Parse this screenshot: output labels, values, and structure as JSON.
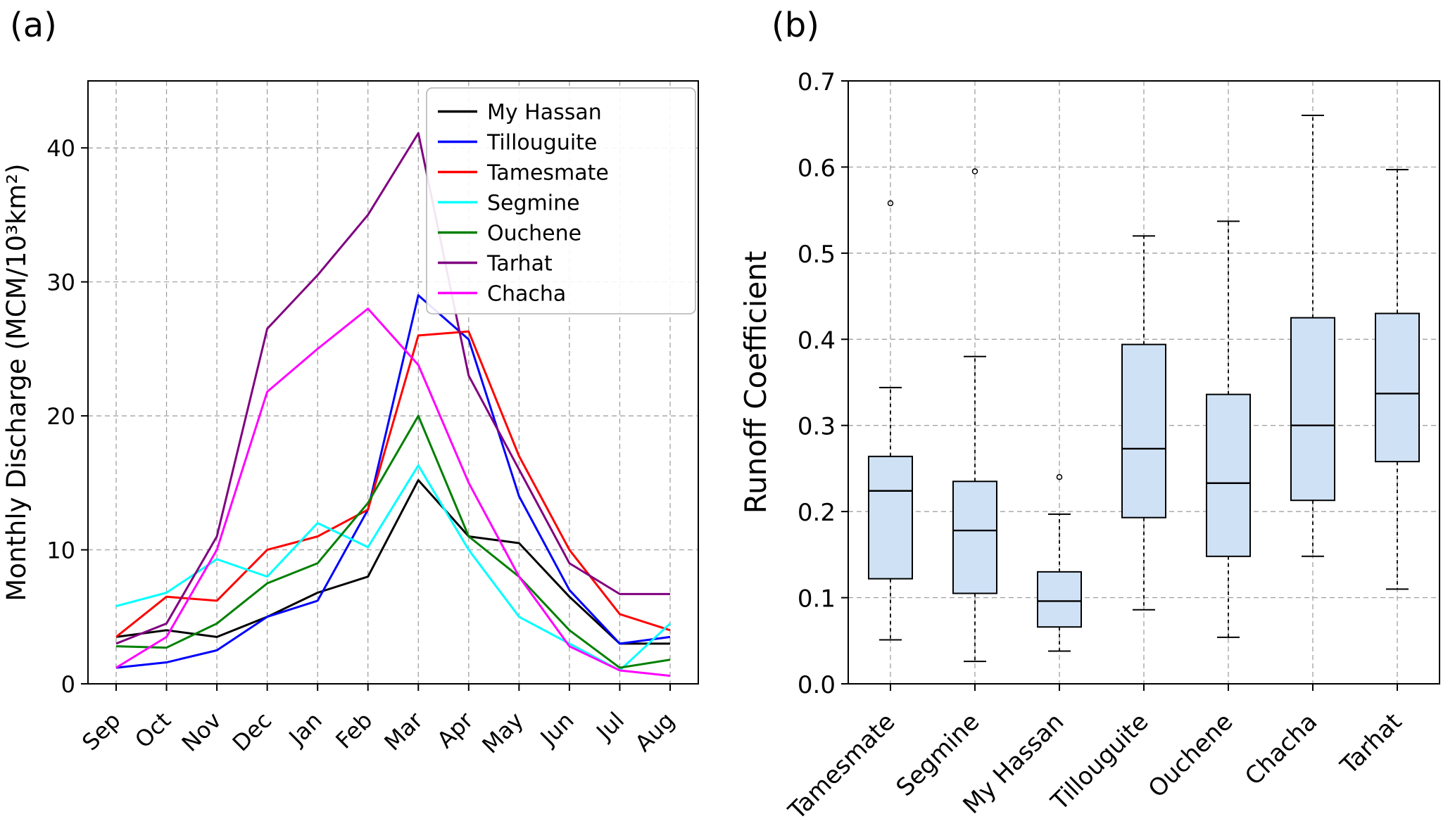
{
  "figure": {
    "panel_a_label": "(a)",
    "panel_b_label": "(b)",
    "background": "#ffffff",
    "grid_color": "#999999",
    "axis_color": "#000000"
  },
  "chart_data": [
    {
      "id": "monthly-discharge",
      "type": "line",
      "panel": "(a)",
      "title": "",
      "xlabel": "",
      "ylabel": "Monthly Discharge (MCM/10³km²)",
      "categories": [
        "Sep",
        "Oct",
        "Nov",
        "Dec",
        "Jan",
        "Feb",
        "Mar",
        "Apr",
        "May",
        "Jun",
        "Jul",
        "Aug"
      ],
      "ylim": [
        0,
        45
      ],
      "yticks": [
        0,
        10,
        20,
        30,
        40
      ],
      "ytick_labels": [
        "0",
        "10",
        "20",
        "30",
        "40"
      ],
      "grid": true,
      "legend_position": "upper right",
      "series": [
        {
          "name": "My Hassan",
          "color": "#000000",
          "values": [
            3.5,
            4.0,
            3.5,
            5.0,
            6.8,
            8.0,
            15.2,
            11.0,
            10.5,
            6.5,
            3.0,
            3.0
          ]
        },
        {
          "name": "Tillouguite",
          "color": "#0000ff",
          "values": [
            1.2,
            1.6,
            2.5,
            5.0,
            6.2,
            13.0,
            29.0,
            25.7,
            14.0,
            7.0,
            3.0,
            3.5
          ]
        },
        {
          "name": "Tamesmate",
          "color": "#ff0000",
          "values": [
            3.5,
            6.5,
            6.2,
            10.0,
            11.0,
            13.0,
            26.0,
            26.3,
            17.0,
            10.0,
            5.2,
            4.0
          ]
        },
        {
          "name": "Segmine",
          "color": "#00ffff",
          "values": [
            5.8,
            6.8,
            9.3,
            8.0,
            12.0,
            10.2,
            16.3,
            10.0,
            5.0,
            3.0,
            1.0,
            4.5
          ]
        },
        {
          "name": "Ouchene",
          "color": "#008000",
          "values": [
            2.8,
            2.7,
            4.5,
            7.5,
            9.0,
            13.5,
            20.0,
            11.0,
            8.0,
            4.0,
            1.2,
            1.8
          ]
        },
        {
          "name": "Tarhat",
          "color": "#800080",
          "values": [
            3.0,
            4.5,
            11.0,
            26.5,
            30.5,
            35.0,
            41.1,
            23.0,
            16.0,
            9.0,
            6.7,
            6.7
          ]
        },
        {
          "name": "Chacha",
          "color": "#ff00ff",
          "values": [
            1.2,
            3.5,
            10.0,
            21.8,
            25.0,
            28.0,
            23.8,
            15.0,
            8.0,
            2.8,
            1.0,
            0.6
          ]
        }
      ]
    },
    {
      "id": "runoff-coefficient",
      "type": "boxplot",
      "panel": "(b)",
      "title": "",
      "xlabel": "",
      "ylabel": "Runoff Coefficient",
      "categories": [
        "Tamesmate",
        "Segmine",
        "My Hassan",
        "Tillouguite",
        "Ouchene",
        "Chacha",
        "Tarhat"
      ],
      "ylim": [
        0,
        0.7
      ],
      "yticks": [
        0,
        0.1,
        0.2,
        0.3,
        0.4,
        0.5,
        0.6,
        0.7
      ],
      "ytick_labels": [
        "0.0",
        "0.1",
        "0.2",
        "0.3",
        "0.4",
        "0.5",
        "0.6",
        "0.7"
      ],
      "grid": true,
      "box_fill": "#cfe1f5",
      "boxes": [
        {
          "label": "Tamesmate",
          "low": 0.051,
          "q1": 0.122,
          "median": 0.224,
          "q3": 0.264,
          "high": 0.344,
          "outliers": [
            0.558
          ]
        },
        {
          "label": "Segmine",
          "low": 0.026,
          "q1": 0.105,
          "median": 0.178,
          "q3": 0.235,
          "high": 0.38,
          "outliers": [
            0.595
          ]
        },
        {
          "label": "My Hassan",
          "low": 0.038,
          "q1": 0.066,
          "median": 0.096,
          "q3": 0.13,
          "high": 0.197,
          "outliers": [
            0.24
          ]
        },
        {
          "label": "Tillouguite",
          "low": 0.086,
          "q1": 0.193,
          "median": 0.273,
          "q3": 0.394,
          "high": 0.52,
          "outliers": []
        },
        {
          "label": "Ouchene",
          "low": 0.054,
          "q1": 0.148,
          "median": 0.233,
          "q3": 0.336,
          "high": 0.537,
          "outliers": []
        },
        {
          "label": "Chacha",
          "low": 0.148,
          "q1": 0.213,
          "median": 0.3,
          "q3": 0.425,
          "high": 0.66,
          "outliers": []
        },
        {
          "label": "Tarhat",
          "low": 0.11,
          "q1": 0.258,
          "median": 0.337,
          "q3": 0.43,
          "high": 0.597,
          "outliers": []
        }
      ]
    }
  ]
}
